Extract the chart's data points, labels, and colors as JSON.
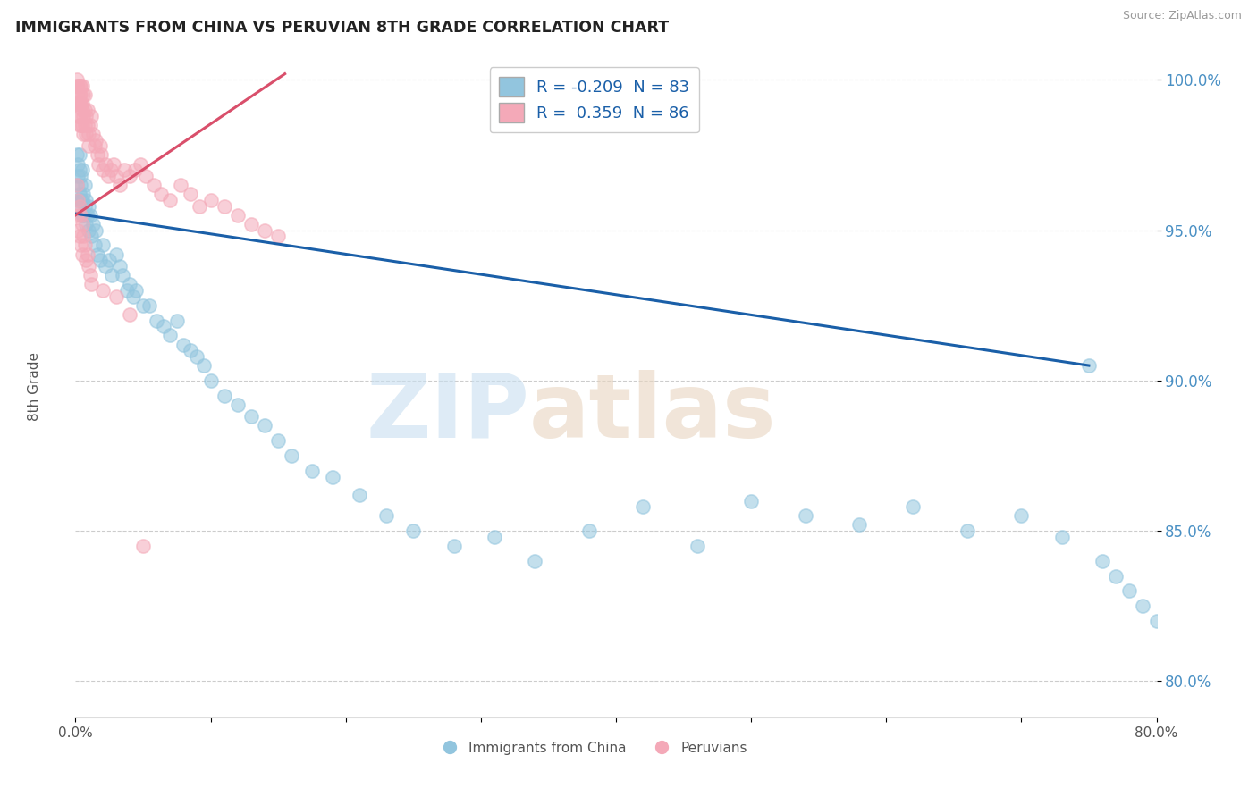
{
  "title": "IMMIGRANTS FROM CHINA VS PERUVIAN 8TH GRADE CORRELATION CHART",
  "source": "Source: ZipAtlas.com",
  "xlabel_blue": "Immigrants from China",
  "xlabel_pink": "Peruvians",
  "ylabel": "8th Grade",
  "xmin": 0.0,
  "xmax": 0.8,
  "ymin": 0.788,
  "ymax": 1.008,
  "yticks": [
    0.8,
    0.85,
    0.9,
    0.95,
    1.0
  ],
  "ytick_labels": [
    "80.0%",
    "85.0%",
    "90.0%",
    "95.0%",
    "100.0%"
  ],
  "xticks": [
    0.0,
    0.1,
    0.2,
    0.3,
    0.4,
    0.5,
    0.6,
    0.7,
    0.8
  ],
  "xtick_labels": [
    "0.0%",
    "",
    "",
    "",
    "",
    "",
    "",
    "",
    "80.0%"
  ],
  "blue_R": -0.209,
  "blue_N": 83,
  "pink_R": 0.359,
  "pink_N": 86,
  "blue_color": "#92c5de",
  "pink_color": "#f4a9b8",
  "blue_line_color": "#1a5fa8",
  "pink_line_color": "#d94f6b",
  "blue_line_x0": 0.0,
  "blue_line_y0": 0.9555,
  "blue_line_x1": 0.75,
  "blue_line_y1": 0.905,
  "pink_line_x0": 0.0,
  "pink_line_y0": 0.955,
  "pink_line_x1": 0.155,
  "pink_line_y1": 1.002,
  "blue_scatter_x": [
    0.001,
    0.001,
    0.002,
    0.002,
    0.002,
    0.003,
    0.003,
    0.003,
    0.003,
    0.004,
    0.004,
    0.004,
    0.005,
    0.005,
    0.005,
    0.006,
    0.006,
    0.007,
    0.007,
    0.008,
    0.008,
    0.009,
    0.01,
    0.01,
    0.011,
    0.012,
    0.013,
    0.014,
    0.015,
    0.016,
    0.018,
    0.02,
    0.022,
    0.025,
    0.027,
    0.03,
    0.033,
    0.035,
    0.038,
    0.04,
    0.043,
    0.045,
    0.05,
    0.055,
    0.06,
    0.065,
    0.07,
    0.075,
    0.08,
    0.085,
    0.09,
    0.095,
    0.1,
    0.11,
    0.12,
    0.13,
    0.14,
    0.15,
    0.16,
    0.175,
    0.19,
    0.21,
    0.23,
    0.25,
    0.28,
    0.31,
    0.34,
    0.38,
    0.42,
    0.46,
    0.5,
    0.54,
    0.58,
    0.62,
    0.66,
    0.7,
    0.73,
    0.75,
    0.76,
    0.77,
    0.78,
    0.79,
    0.8
  ],
  "blue_scatter_y": [
    0.975,
    0.965,
    0.972,
    0.96,
    0.968,
    0.962,
    0.97,
    0.958,
    0.975,
    0.96,
    0.965,
    0.968,
    0.955,
    0.96,
    0.97,
    0.955,
    0.962,
    0.958,
    0.965,
    0.952,
    0.96,
    0.955,
    0.958,
    0.95,
    0.955,
    0.948,
    0.952,
    0.945,
    0.95,
    0.942,
    0.94,
    0.945,
    0.938,
    0.94,
    0.935,
    0.942,
    0.938,
    0.935,
    0.93,
    0.932,
    0.928,
    0.93,
    0.925,
    0.925,
    0.92,
    0.918,
    0.915,
    0.92,
    0.912,
    0.91,
    0.908,
    0.905,
    0.9,
    0.895,
    0.892,
    0.888,
    0.885,
    0.88,
    0.875,
    0.87,
    0.868,
    0.862,
    0.855,
    0.85,
    0.845,
    0.848,
    0.84,
    0.85,
    0.858,
    0.845,
    0.86,
    0.855,
    0.852,
    0.858,
    0.85,
    0.855,
    0.848,
    0.905,
    0.84,
    0.835,
    0.83,
    0.825,
    0.82
  ],
  "pink_scatter_x": [
    0.001,
    0.001,
    0.001,
    0.002,
    0.002,
    0.002,
    0.002,
    0.003,
    0.003,
    0.003,
    0.003,
    0.003,
    0.004,
    0.004,
    0.004,
    0.004,
    0.005,
    0.005,
    0.005,
    0.005,
    0.006,
    0.006,
    0.006,
    0.007,
    0.007,
    0.007,
    0.008,
    0.008,
    0.009,
    0.009,
    0.01,
    0.01,
    0.011,
    0.012,
    0.013,
    0.014,
    0.015,
    0.016,
    0.017,
    0.018,
    0.019,
    0.02,
    0.022,
    0.024,
    0.026,
    0.028,
    0.03,
    0.033,
    0.036,
    0.04,
    0.044,
    0.048,
    0.052,
    0.058,
    0.063,
    0.07,
    0.078,
    0.085,
    0.092,
    0.1,
    0.11,
    0.12,
    0.13,
    0.14,
    0.15,
    0.001,
    0.001,
    0.002,
    0.002,
    0.003,
    0.003,
    0.004,
    0.004,
    0.005,
    0.005,
    0.006,
    0.007,
    0.008,
    0.009,
    0.01,
    0.011,
    0.012,
    0.02,
    0.03,
    0.04,
    0.05
  ],
  "pink_scatter_y": [
    0.998,
    0.992,
    1.0,
    0.995,
    0.988,
    0.998,
    0.992,
    0.995,
    0.988,
    0.998,
    0.992,
    0.985,
    0.998,
    0.992,
    0.985,
    0.995,
    0.99,
    0.985,
    0.998,
    0.992,
    0.988,
    0.995,
    0.982,
    0.99,
    0.985,
    0.995,
    0.988,
    0.982,
    0.99,
    0.985,
    0.982,
    0.978,
    0.985,
    0.988,
    0.982,
    0.978,
    0.98,
    0.975,
    0.972,
    0.978,
    0.975,
    0.97,
    0.972,
    0.968,
    0.97,
    0.972,
    0.968,
    0.965,
    0.97,
    0.968,
    0.97,
    0.972,
    0.968,
    0.965,
    0.962,
    0.96,
    0.965,
    0.962,
    0.958,
    0.96,
    0.958,
    0.955,
    0.952,
    0.95,
    0.948,
    0.965,
    0.955,
    0.96,
    0.95,
    0.958,
    0.948,
    0.955,
    0.945,
    0.952,
    0.942,
    0.948,
    0.945,
    0.94,
    0.942,
    0.938,
    0.935,
    0.932,
    0.93,
    0.928,
    0.922,
    0.845
  ]
}
